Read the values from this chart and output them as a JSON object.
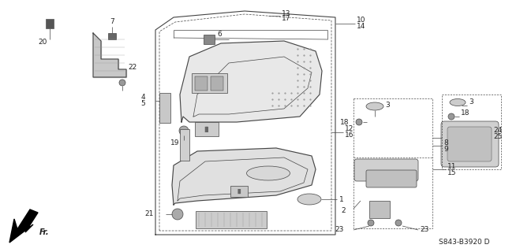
{
  "code": "S843-B3920 D",
  "fr_label": "Fr.",
  "background": "#ffffff",
  "lc": "#444444",
  "tc": "#222222",
  "figsize": [
    6.4,
    3.2
  ],
  "dpi": 100
}
